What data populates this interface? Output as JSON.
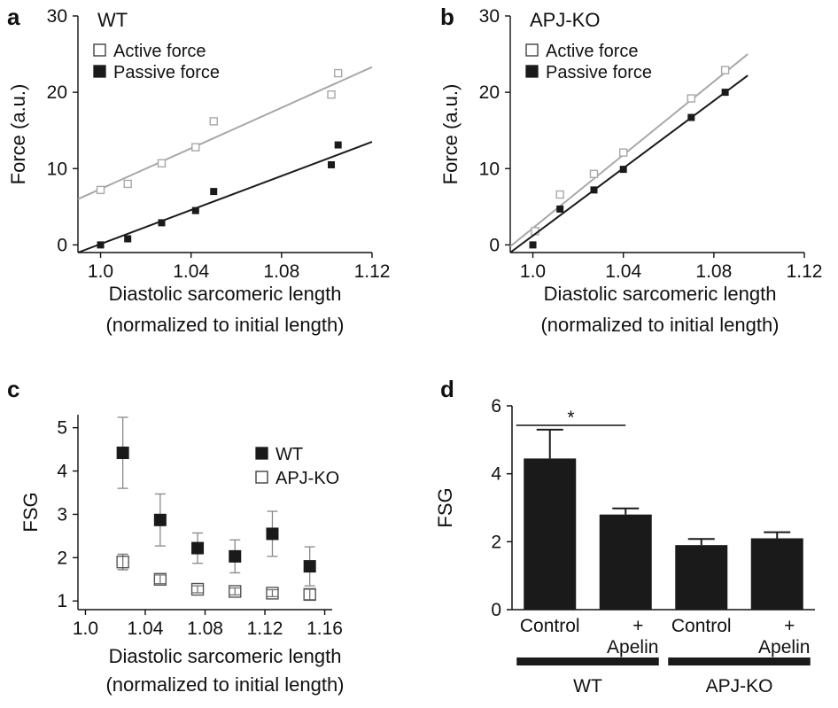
{
  "figure": {
    "panels": [
      "a",
      "b",
      "c",
      "d"
    ]
  },
  "chart_data": [
    {
      "panel": "a",
      "type": "scatter",
      "title": "WT",
      "xlabel": "Diastolic sarcomeric length",
      "xlabel2": "(normalized to initial length)",
      "ylabel": "Force (a.u.)",
      "xlim": [
        0.99,
        1.12
      ],
      "ylim": [
        -1,
        30
      ],
      "xticks": [
        "1.0",
        "1.04",
        "1.08",
        "1.12"
      ],
      "xtick_values": [
        1.0,
        1.04,
        1.08,
        1.12
      ],
      "yticks": [
        "0",
        "10",
        "20",
        "30"
      ],
      "ytick_values": [
        0,
        10,
        20,
        30
      ],
      "legend_position": "top-left",
      "series": [
        {
          "name": "Active force",
          "marker": "open-square",
          "color": "#a8a8a8",
          "x": [
            1.0,
            1.012,
            1.027,
            1.042,
            1.05,
            1.102,
            1.105
          ],
          "y": [
            7.2,
            8.0,
            10.7,
            12.8,
            16.2,
            19.7,
            22.5
          ],
          "fit": [
            [
              0.99,
              6.0
            ],
            [
              1.12,
              23.3
            ]
          ]
        },
        {
          "name": "Passive force",
          "marker": "filled-square",
          "color": "#1a1a1a",
          "x": [
            1.0,
            1.012,
            1.027,
            1.042,
            1.05,
            1.102,
            1.105
          ],
          "y": [
            0.0,
            0.8,
            2.9,
            4.5,
            7.0,
            10.5,
            13.1
          ],
          "fit": [
            [
              0.99,
              -1.0
            ],
            [
              1.12,
              13.5
            ]
          ]
        }
      ]
    },
    {
      "panel": "b",
      "type": "scatter",
      "title": "APJ-KO",
      "xlabel": "Diastolic sarcomeric length",
      "xlabel2": "(normalized to initial length)",
      "ylabel": "Force (a.u.)",
      "xlim": [
        0.99,
        1.12
      ],
      "ylim": [
        -1,
        30
      ],
      "xticks": [
        "1.0",
        "1.04",
        "1.08",
        "1.12"
      ],
      "xtick_values": [
        1.0,
        1.04,
        1.08,
        1.12
      ],
      "yticks": [
        "0",
        "10",
        "20",
        "30"
      ],
      "ytick_values": [
        0,
        10,
        20,
        30
      ],
      "legend_position": "top-left",
      "series": [
        {
          "name": "Active force",
          "marker": "open-square",
          "color": "#a8a8a8",
          "x": [
            1.001,
            1.012,
            1.027,
            1.04,
            1.07,
            1.085
          ],
          "y": [
            1.8,
            6.6,
            9.3,
            12.1,
            19.2,
            22.9
          ],
          "fit": [
            [
              0.99,
              -0.2
            ],
            [
              1.095,
              25.0
            ]
          ]
        },
        {
          "name": "Passive force",
          "marker": "filled-square",
          "color": "#1a1a1a",
          "x": [
            1.0,
            1.012,
            1.027,
            1.04,
            1.07,
            1.085
          ],
          "y": [
            0.0,
            4.7,
            7.2,
            9.9,
            16.7,
            20.0
          ],
          "fit": [
            [
              0.99,
              -1.0
            ],
            [
              1.095,
              22.2
            ]
          ]
        }
      ]
    },
    {
      "panel": "c",
      "type": "scatter",
      "xlabel": "Diastolic sarcomeric length",
      "xlabel2": "(normalized to initial length)",
      "ylabel": "FSG",
      "xlim": [
        0.995,
        1.165
      ],
      "ylim": [
        0.8,
        5.3
      ],
      "xticks": [
        "1.0",
        "1.04",
        "1.08",
        "1.12",
        "1.16"
      ],
      "xtick_values": [
        1.0,
        1.04,
        1.08,
        1.12,
        1.16
      ],
      "yticks": [
        "1",
        "2",
        "3",
        "4",
        "5"
      ],
      "ytick_values": [
        1,
        2,
        3,
        4,
        5
      ],
      "legend_position": "top-right",
      "series": [
        {
          "name": "WT",
          "marker": "filled-square",
          "color": "#1a1a1a",
          "x": [
            1.025,
            1.05,
            1.075,
            1.1,
            1.125,
            1.15
          ],
          "y": [
            4.42,
            2.87,
            2.22,
            2.03,
            2.55,
            1.8
          ],
          "err": [
            0.82,
            0.6,
            0.35,
            0.38,
            0.52,
            0.45
          ]
        },
        {
          "name": "APJ-KO",
          "marker": "open-square",
          "color": "#555555",
          "x": [
            1.025,
            1.05,
            1.075,
            1.1,
            1.125,
            1.15
          ],
          "y": [
            1.9,
            1.5,
            1.27,
            1.22,
            1.18,
            1.15
          ],
          "err": [
            0.18,
            0.1,
            0.08,
            0.08,
            0.08,
            0.12
          ]
        }
      ]
    },
    {
      "panel": "d",
      "type": "bar",
      "ylabel": "FSG",
      "ylim": [
        0,
        6
      ],
      "yticks": [
        "0",
        "2",
        "4",
        "6"
      ],
      "ytick_values": [
        0,
        2,
        4,
        6
      ],
      "categories": [
        "Control",
        "+ Apelin",
        "Control",
        "+ Apelin"
      ],
      "category_lines": [
        [
          "Control"
        ],
        [
          "+",
          "Apelin"
        ],
        [
          "Control"
        ],
        [
          "+",
          "Apelin"
        ]
      ],
      "values": [
        4.45,
        2.8,
        1.9,
        2.1
      ],
      "err": [
        0.85,
        0.18,
        0.18,
        0.18
      ],
      "bar_color": "#1a1a1a",
      "groups": [
        {
          "label": "WT",
          "members": [
            0,
            1
          ]
        },
        {
          "label": "APJ-KO",
          "members": [
            2,
            3
          ]
        }
      ],
      "significance": [
        {
          "between": [
            0,
            1
          ],
          "label": "*"
        }
      ]
    }
  ]
}
